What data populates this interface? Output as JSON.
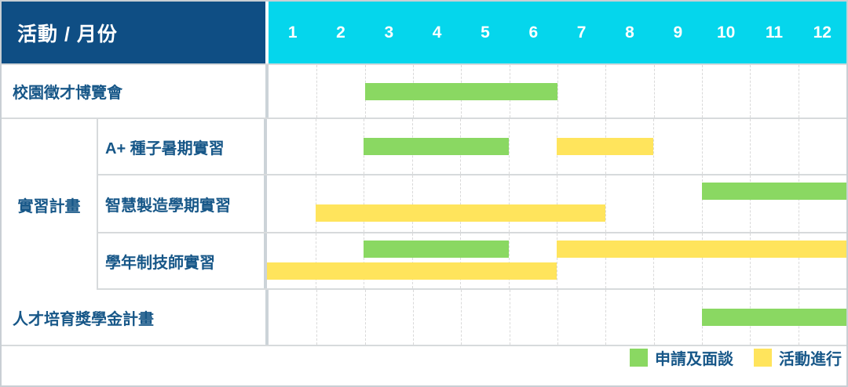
{
  "header": {
    "title": "活動 / 月份"
  },
  "months": [
    "1",
    "2",
    "3",
    "4",
    "5",
    "6",
    "7",
    "8",
    "9",
    "10",
    "11",
    "12"
  ],
  "group": {
    "label": "實習計畫"
  },
  "rows": [
    {
      "label": "校園徵才博覽會",
      "bars": [
        {
          "type": "apply",
          "start": 3,
          "end": 6,
          "lane": "single"
        }
      ]
    },
    {
      "label": "A+ 種子暑期實習",
      "bars": [
        {
          "type": "apply",
          "start": 3,
          "end": 5,
          "lane": "single"
        },
        {
          "type": "active",
          "start": 7,
          "end": 8,
          "lane": "single"
        }
      ]
    },
    {
      "label": "智慧製造學期實習",
      "bars": [
        {
          "type": "apply",
          "start": 10,
          "end": 12,
          "lane": "top"
        },
        {
          "type": "active",
          "start": 2,
          "end": 7,
          "lane": "bottom"
        }
      ]
    },
    {
      "label": "學年制技師實習",
      "bars": [
        {
          "type": "apply",
          "start": 3,
          "end": 5,
          "lane": "top"
        },
        {
          "type": "active",
          "start": 7,
          "end": 12,
          "lane": "top"
        },
        {
          "type": "active",
          "start": 1,
          "end": 6,
          "lane": "bottom"
        }
      ]
    },
    {
      "label": "人才培育獎學金計畫",
      "bars": [
        {
          "type": "apply",
          "start": 10,
          "end": 12,
          "lane": "single"
        }
      ]
    }
  ],
  "legend": [
    {
      "type": "apply",
      "label": "申請及面談"
    },
    {
      "type": "active",
      "label": "活動進行"
    }
  ],
  "colors": {
    "apply": "#8AD862",
    "active": "#FFE45C",
    "header_bg": "#0F4E84",
    "months_bg": "#05D6EC",
    "label_text": "#175788"
  },
  "chart_data": {
    "type": "bar",
    "variant": "gantt-timeline",
    "title": "活動 / 月份",
    "x_axis": {
      "label": "月份",
      "ticks": [
        1,
        2,
        3,
        4,
        5,
        6,
        7,
        8,
        9,
        10,
        11,
        12
      ],
      "range": [
        1,
        12
      ]
    },
    "grid": "dashed-vertical-month-lines",
    "legend_position": "bottom-right",
    "series": [
      {
        "row": "校園徵才博覽會",
        "group": null,
        "segments": [
          {
            "phase": "申請及面談",
            "start_month": 3,
            "end_month": 6
          }
        ]
      },
      {
        "row": "A+ 種子暑期實習",
        "group": "實習計畫",
        "segments": [
          {
            "phase": "申請及面談",
            "start_month": 3,
            "end_month": 5
          },
          {
            "phase": "活動進行",
            "start_month": 7,
            "end_month": 8
          }
        ]
      },
      {
        "row": "智慧製造學期實習",
        "group": "實習計畫",
        "segments": [
          {
            "phase": "申請及面談",
            "start_month": 10,
            "end_month": 12
          },
          {
            "phase": "活動進行",
            "start_month": 2,
            "end_month": 7
          }
        ]
      },
      {
        "row": "學年制技師實習",
        "group": "實習計畫",
        "segments": [
          {
            "phase": "申請及面談",
            "start_month": 3,
            "end_month": 5
          },
          {
            "phase": "活動進行",
            "start_month": 7,
            "end_month": 12
          },
          {
            "phase": "活動進行",
            "start_month": 1,
            "end_month": 6
          }
        ]
      },
      {
        "row": "人才培育獎學金計畫",
        "group": null,
        "segments": [
          {
            "phase": "申請及面談",
            "start_month": 10,
            "end_month": 12
          }
        ]
      }
    ],
    "legend": [
      {
        "label": "申請及面談",
        "color": "#8AD862"
      },
      {
        "label": "活動進行",
        "color": "#FFE45C"
      }
    ]
  }
}
